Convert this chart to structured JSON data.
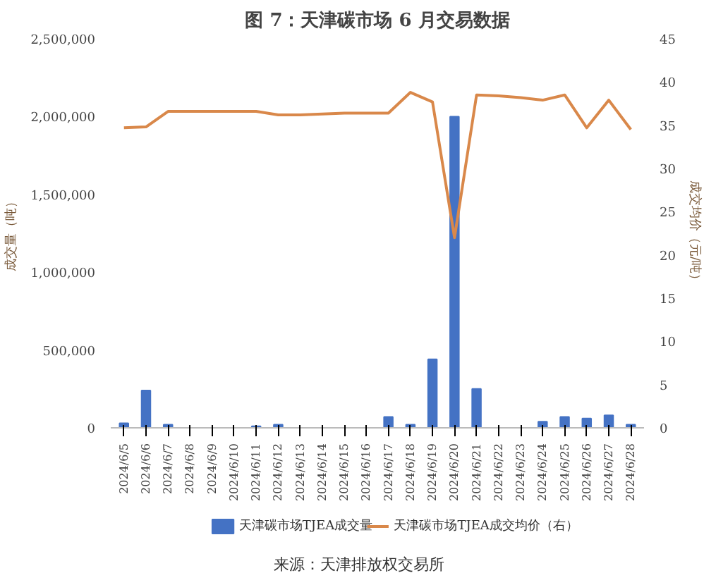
{
  "chart_data": {
    "type": "bar",
    "title": "图 7：天津碳市场 6 月交易数据",
    "ylabel": "成交量（吨）",
    "y2label": "成交均价（元/吨）",
    "categories": [
      "2024/6/5",
      "2024/6/6",
      "2024/6/7",
      "2024/6/8",
      "2024/6/9",
      "2024/6/10",
      "2024/6/11",
      "2024/6/12",
      "2024/6/13",
      "2024/6/14",
      "2024/6/15",
      "2024/6/16",
      "2024/6/17",
      "2024/6/18",
      "2024/6/19",
      "2024/6/20",
      "2024/6/21",
      "2024/6/22",
      "2024/6/23",
      "2024/6/24",
      "2024/6/25",
      "2024/6/26",
      "2024/6/27",
      "2024/6/28"
    ],
    "series": [
      {
        "name": "天津碳市场TJEA成交量",
        "color": "#4472c4",
        "values": [
          30000,
          240000,
          20000,
          0,
          0,
          0,
          10000,
          20000,
          0,
          0,
          0,
          0,
          70000,
          20000,
          440000,
          2000000,
          250000,
          0,
          0,
          40000,
          70000,
          60000,
          80000,
          20000
        ]
      },
      {
        "name": "天津碳市场TJEA成交均价（右）",
        "type": "line",
        "axis": "y2",
        "color": "#d9884a",
        "values": [
          34.7,
          34.8,
          36.6,
          36.6,
          36.6,
          36.6,
          36.6,
          36.2,
          36.2,
          36.3,
          36.4,
          36.4,
          36.4,
          38.8,
          37.7,
          22,
          38.5,
          38.4,
          38.2,
          37.9,
          38.5,
          34.7,
          37.9,
          34.5
        ]
      }
    ],
    "ylim": [
      0,
      2500000
    ],
    "yticks": [
      {
        "value": 0,
        "label": "0"
      },
      {
        "value": 500000,
        "label": "500,000"
      },
      {
        "value": 1000000,
        "label": "1,000,000"
      },
      {
        "value": 1500000,
        "label": "1,500,000"
      },
      {
        "value": 2000000,
        "label": "2,000,000"
      },
      {
        "value": 2500000,
        "label": "2,500,000"
      }
    ],
    "y2lim": [
      0,
      45
    ],
    "y2ticks": [
      0,
      5,
      10,
      15,
      20,
      25,
      30,
      35,
      40,
      45
    ],
    "grid": false,
    "legend": "bottom",
    "annotations": [
      "来源：天津排放权交易所"
    ]
  }
}
